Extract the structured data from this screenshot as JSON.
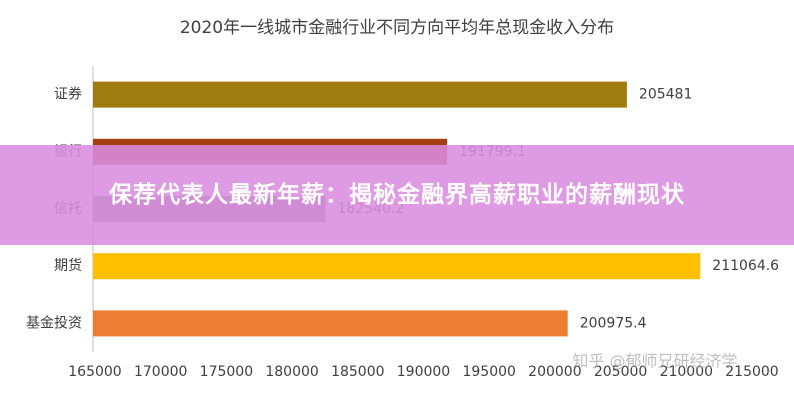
{
  "chart_data": {
    "type": "hbar",
    "title": "2020年一线城市金融行业不同方向平均年总现金收入分布",
    "categories": [
      "证券",
      "银行",
      "信托",
      "期货",
      "基金投资"
    ],
    "values": [
      205481,
      191799.1,
      182540.2,
      211064.6,
      200975.4
    ],
    "colors": [
      "#a07b0f",
      "#a63e14",
      "#8f8f8f",
      "#ffc000",
      "#ed7d31"
    ],
    "xlim": [
      165000,
      215000
    ],
    "xticks": [
      165000,
      170000,
      175000,
      180000,
      185000,
      190000,
      195000,
      200000,
      205000,
      210000,
      215000
    ],
    "grid": false,
    "watermark": "知乎 @郁师兄研经济学"
  },
  "overlay": {
    "headline": "保荐代表人最新年薪：揭秘金融界高薪职业的薪酬现状"
  }
}
